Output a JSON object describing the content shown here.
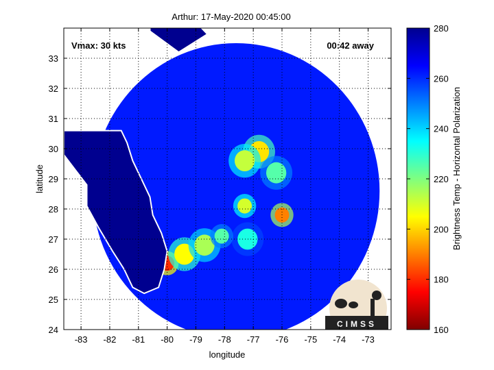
{
  "chart_data": {
    "type": "heatmap",
    "title": "Arthur: 17-May-2020 00:45:00",
    "xlabel": "longitude",
    "ylabel": "latitude",
    "xlim": [
      -83.6,
      -72.2
    ],
    "ylim": [
      24,
      34
    ],
    "xticks": [
      -83,
      -82,
      -81,
      -80,
      -79,
      -78,
      -77,
      -76,
      -75,
      -74,
      -73
    ],
    "yticks": [
      24,
      25,
      26,
      27,
      28,
      29,
      30,
      31,
      32,
      33
    ],
    "grid": true,
    "annotations": {
      "vmax": "Vmax: 30 kts",
      "time_away": "00:42 away"
    },
    "colorbar": {
      "label": "Brightness Temp - Horizontal Polarization",
      "range": [
        160,
        280
      ],
      "ticks": [
        160,
        180,
        200,
        220,
        240,
        260,
        280
      ]
    },
    "swath": {
      "center_lon": -77.6,
      "center_lat": 28.6,
      "radius_deg": 5.0
    },
    "background_tb": 262,
    "land_tb": 282,
    "features": [
      {
        "lon": -76.8,
        "lat": 29.9,
        "tb": 202,
        "spread": 0.35
      },
      {
        "lon": -77.3,
        "lat": 29.6,
        "tb": 212,
        "spread": 0.35
      },
      {
        "lon": -76.2,
        "lat": 29.2,
        "tb": 225,
        "spread": 0.35
      },
      {
        "lon": -77.3,
        "lat": 28.1,
        "tb": 210,
        "spread": 0.25
      },
      {
        "lon": -76.0,
        "lat": 27.8,
        "tb": 190,
        "spread": 0.25
      },
      {
        "lon": -77.2,
        "lat": 27.0,
        "tb": 232,
        "spread": 0.35
      },
      {
        "lon": -80.0,
        "lat": 26.2,
        "tb": 180,
        "spread": 0.25
      },
      {
        "lon": -79.4,
        "lat": 26.5,
        "tb": 205,
        "spread": 0.35
      },
      {
        "lon": -78.7,
        "lat": 26.8,
        "tb": 215,
        "spread": 0.35
      },
      {
        "lon": -78.1,
        "lat": 27.1,
        "tb": 225,
        "spread": 0.25
      }
    ]
  },
  "logo": {
    "text": "CIMSS"
  }
}
